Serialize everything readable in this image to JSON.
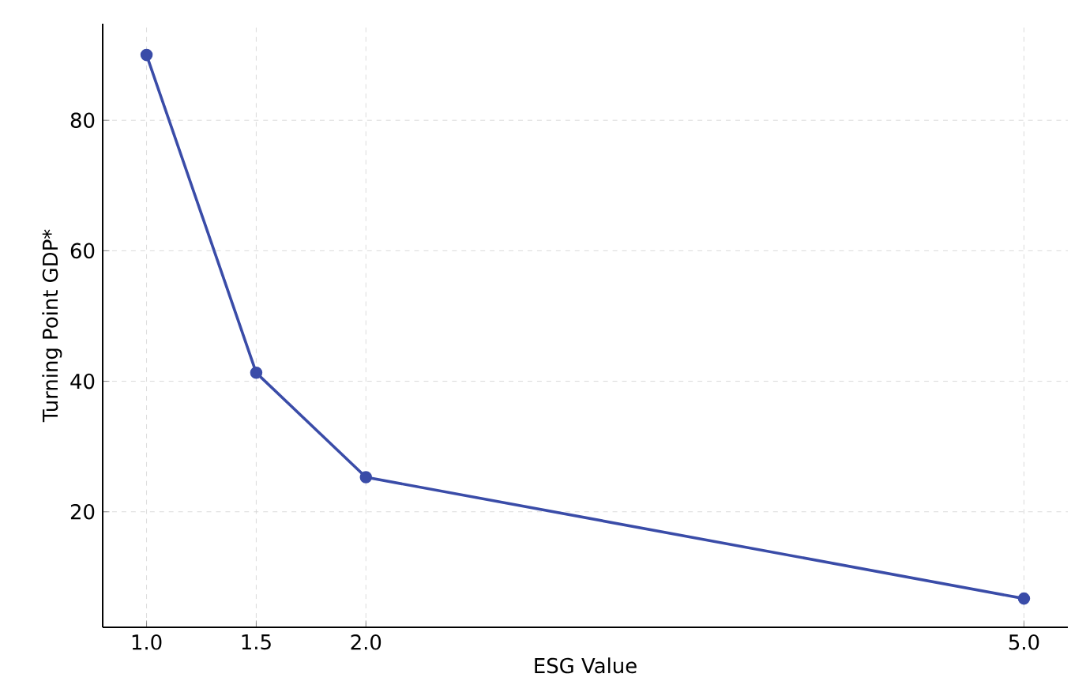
{
  "chart_data": {
    "type": "line",
    "xlabel": "ESG Value",
    "ylabel": "Turning Point GDP*",
    "x": [
      1.0,
      1.5,
      2.0,
      5.0
    ],
    "series": [
      {
        "color": "#3a4ca8",
        "values": [
          90,
          41.3,
          25.3,
          6.7
        ]
      }
    ],
    "xlim": [
      0.8,
      5.2
    ],
    "ylim": [
      2.3,
      94.8
    ],
    "xticks": [
      {
        "value": 1.0,
        "label": "1.0"
      },
      {
        "value": 1.5,
        "label": "1.5"
      },
      {
        "value": 2.0,
        "label": "2.0"
      },
      {
        "value": 5.0,
        "label": "5.0"
      }
    ],
    "yticks": [
      20,
      40,
      60,
      80
    ],
    "grid": true,
    "marker": "circle",
    "line_style": "solid"
  }
}
